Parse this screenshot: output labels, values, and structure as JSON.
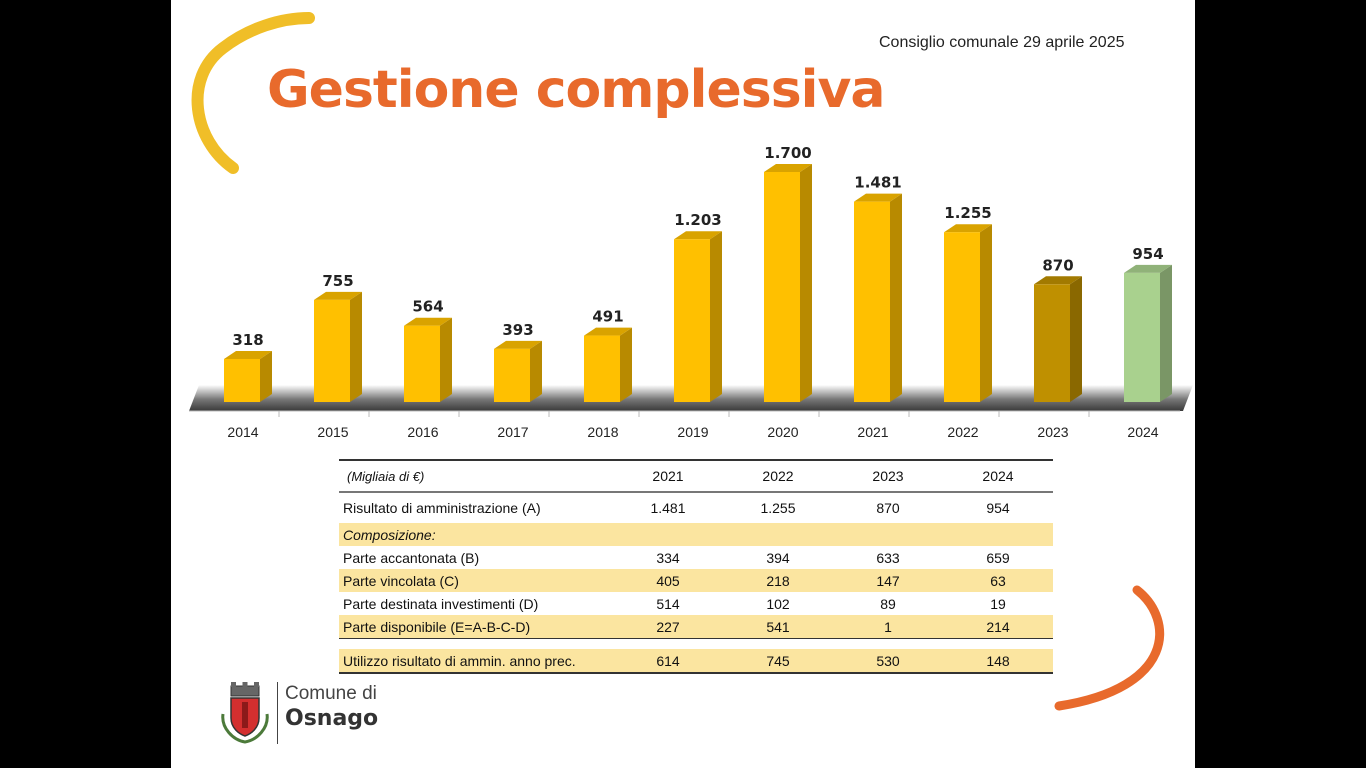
{
  "slide": {
    "subtitle": "Consiglio comunale 29 aprile 2025",
    "title": "Gestione complessiva"
  },
  "colors": {
    "title": "#E86A2C",
    "bar_default": "#FFC000",
    "bar_2023": "#BF9000",
    "bar_2024": "#A9D18E",
    "arc_top": "#F0BE28",
    "arc_bottom": "#E86A2C",
    "table_shade": "#FBE5A0"
  },
  "chart_data": {
    "type": "bar",
    "categories": [
      "2014",
      "2015",
      "2016",
      "2017",
      "2018",
      "2019",
      "2020",
      "2021",
      "2022",
      "2023",
      "2024"
    ],
    "values": [
      318,
      755,
      564,
      393,
      491,
      1203,
      1700,
      1481,
      1255,
      870,
      954
    ],
    "data_labels": [
      "318",
      "755",
      "564",
      "393",
      "491",
      "1.203",
      "1.700",
      "1.481",
      "1.255",
      "870",
      "954"
    ],
    "title": "",
    "xlabel": "",
    "ylabel": "",
    "ylim": [
      0,
      1700
    ],
    "grid": false,
    "legend": "none"
  },
  "table": {
    "unit_label": "(Migliaia di €)",
    "years": [
      "2021",
      "2022",
      "2023",
      "2024"
    ],
    "rows": [
      {
        "label": "Risultato di amministrazione (A)",
        "values": [
          "1.481",
          "1.255",
          "870",
          "954"
        ]
      },
      {
        "label": "Composizione:",
        "values": [
          "",
          "",
          "",
          ""
        ]
      },
      {
        "label": "Parte accantonata (B)",
        "values": [
          "334",
          "394",
          "633",
          "659"
        ]
      },
      {
        "label": "Parte vincolata (C)",
        "values": [
          "405",
          "218",
          "147",
          "63"
        ]
      },
      {
        "label": "Parte destinata investimenti (D)",
        "values": [
          "514",
          "102",
          "89",
          "19"
        ]
      },
      {
        "label": "Parte disponibile (E=A-B-C-D)",
        "values": [
          "227",
          "541",
          "1",
          "214"
        ]
      },
      {
        "label": "Utilizzo risultato di ammin. anno prec.",
        "values": [
          "614",
          "745",
          "530",
          "148"
        ]
      }
    ]
  },
  "logo": {
    "line1": "Comune di",
    "line2": "Osnago"
  }
}
